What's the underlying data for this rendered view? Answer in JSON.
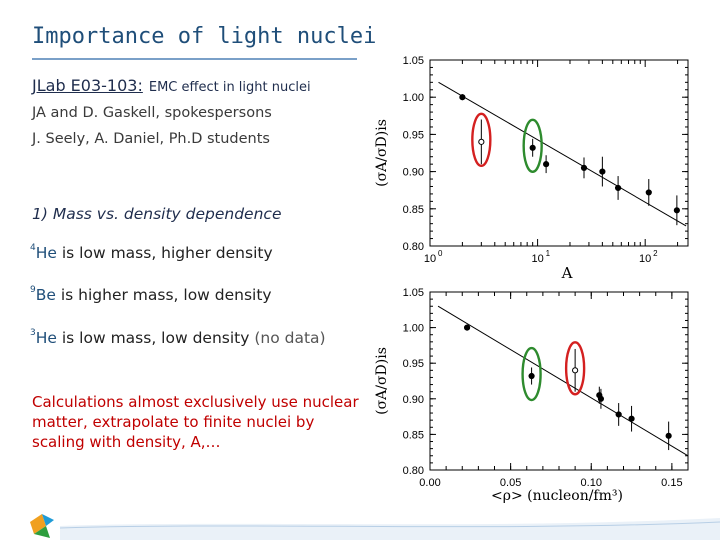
{
  "slide": {
    "title": "Importance of light nuclei",
    "experiment_label": "JLab E03-103:",
    "experiment_desc": "EMC effect in light nuclei",
    "spokespersons": "JA and D. Gaskell, spokespersons",
    "students": "J. Seely, A. Daniel, Ph.D students",
    "section": "1) Mass vs. density dependence",
    "point1": {
      "mass": "4",
      "symbol": "He",
      "text": "is low mass, higher density"
    },
    "point2": {
      "mass": "9",
      "symbol": "Be",
      "text": "is higher mass, low density"
    },
    "point3": {
      "mass": "3",
      "symbol": "He",
      "text": "is low mass, low density",
      "note": "(no data)"
    },
    "conclusion": "Calculations almost exclusively use nuclear matter, extrapolate to finite nuclei by scaling with density, A,…"
  },
  "colors": {
    "title": "#1f4e79",
    "conclusion": "#c00000",
    "circle_4he": "#2e8b2e",
    "circle_9be": "#d42020"
  },
  "chart_data": [
    {
      "type": "scatter",
      "xscale": "log",
      "xlabel": "A",
      "ylabel": "(σA/σD)is",
      "xlim": [
        1,
        250
      ],
      "ylim": [
        0.8,
        1.05
      ],
      "xticks": [
        {
          "v": 1,
          "base": "10",
          "exp": "0"
        },
        {
          "v": 10,
          "base": "10",
          "exp": "1"
        },
        {
          "v": 100,
          "base": "10",
          "exp": "2"
        }
      ],
      "yticks": [
        "0.80",
        "0.85",
        "0.90",
        "0.95",
        "1.00",
        "1.05"
      ],
      "points": [
        {
          "x": 2,
          "y": 1.0,
          "err": 0.004,
          "filled": true
        },
        {
          "x": 3,
          "y": 0.94,
          "err": 0.03,
          "filled": false,
          "circled": "red"
        },
        {
          "x": 9,
          "y": 0.932,
          "err": 0.012,
          "filled": true,
          "circled": "green"
        },
        {
          "x": 12,
          "y": 0.91,
          "err": 0.012,
          "filled": true
        },
        {
          "x": 27,
          "y": 0.905,
          "err": 0.014,
          "filled": true
        },
        {
          "x": 40,
          "y": 0.9,
          "err": 0.02,
          "filled": true
        },
        {
          "x": 56,
          "y": 0.878,
          "err": 0.016,
          "filled": true
        },
        {
          "x": 108,
          "y": 0.872,
          "err": 0.018,
          "filled": true
        },
        {
          "x": 197,
          "y": 0.848,
          "err": 0.02,
          "filled": true
        }
      ],
      "fit": {
        "x0": 1.2,
        "y0": 1.02,
        "x1": 240,
        "y1": 0.827
      }
    },
    {
      "type": "scatter",
      "xlabel": "<ρ> (nucleon/fm³)",
      "ylabel": "(σA/σD)is",
      "xlim": [
        0.0,
        0.16
      ],
      "ylim": [
        0.8,
        1.05
      ],
      "xticks": [
        "0.00",
        "0.05",
        "0.10",
        "0.15"
      ],
      "yticks": [
        "0.80",
        "0.85",
        "0.90",
        "0.95",
        "1.00",
        "1.05"
      ],
      "points": [
        {
          "x": 0.023,
          "y": 1.0,
          "err": 0.004,
          "filled": true
        },
        {
          "x": 0.063,
          "y": 0.932,
          "err": 0.012,
          "filled": true,
          "circled": "green"
        },
        {
          "x": 0.09,
          "y": 0.94,
          "err": 0.03,
          "filled": false,
          "circled": "red"
        },
        {
          "x": 0.105,
          "y": 0.905,
          "err": 0.012,
          "filled": true
        },
        {
          "x": 0.106,
          "y": 0.9,
          "err": 0.014,
          "filled": true
        },
        {
          "x": 0.117,
          "y": 0.878,
          "err": 0.016,
          "filled": true
        },
        {
          "x": 0.125,
          "y": 0.872,
          "err": 0.018,
          "filled": true
        },
        {
          "x": 0.148,
          "y": 0.848,
          "err": 0.02,
          "filled": true
        }
      ],
      "fit": {
        "x0": 0.005,
        "y0": 1.03,
        "x1": 0.16,
        "y1": 0.82
      }
    }
  ]
}
